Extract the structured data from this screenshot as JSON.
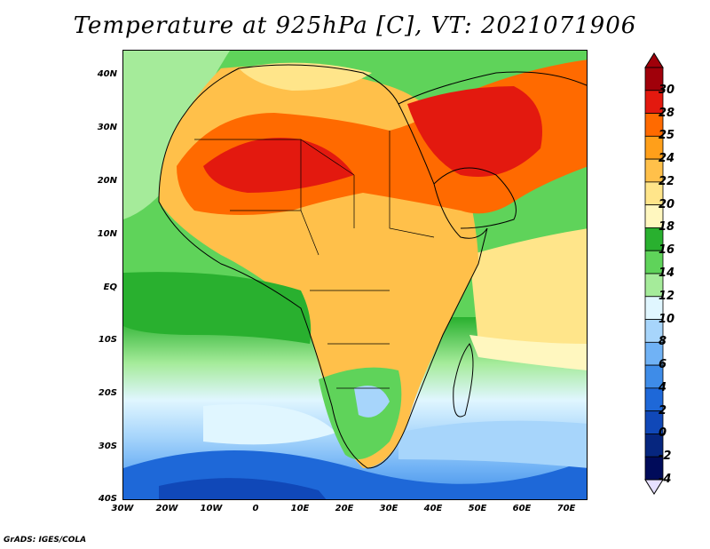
{
  "title": "Temperature at 925hPa [C], VT: 2021071906",
  "credit": "GrADS: IGES/COLA",
  "map": {
    "variable": "Temperature at 925hPa",
    "units": "C",
    "valid_time": "2021071906",
    "lat_range": [
      -40,
      45
    ],
    "lon_range": [
      -30,
      75
    ],
    "lat_labels": [
      "40N",
      "30N",
      "20N",
      "10N",
      "EQ",
      "10S",
      "20S",
      "30S",
      "40S"
    ],
    "lon_labels": [
      "30W",
      "20W",
      "10W",
      "0",
      "10E",
      "20E",
      "30E",
      "40E",
      "50E",
      "60E",
      "70E"
    ]
  },
  "colorbar": {
    "labels": [
      "30",
      "28",
      "25",
      "24",
      "22",
      "20",
      "18",
      "16",
      "14",
      "12",
      "10",
      "8",
      "6",
      "4",
      "2",
      "0",
      "-2",
      "-4"
    ],
    "colors": [
      "#a0000a",
      "#e3190f",
      "#ff6a00",
      "#ff9f1a",
      "#ffc04a",
      "#ffe58a",
      "#fff7bf",
      "#29b02f",
      "#5fd35a",
      "#a5eb9a",
      "#e0f6ff",
      "#a7d5fb",
      "#70b2f5",
      "#3e8ce8",
      "#1e68d8",
      "#1048b8",
      "#06267f",
      "#000b5a",
      "#e6e0ff"
    ]
  }
}
